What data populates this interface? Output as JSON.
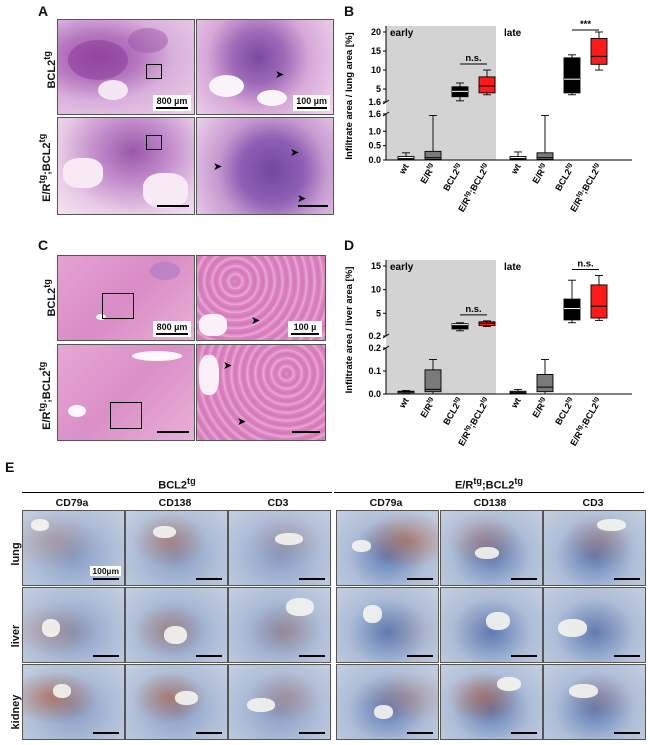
{
  "panels": {
    "A": "A",
    "B": "B",
    "C": "C",
    "D": "D",
    "E": "E"
  },
  "row_labels": {
    "bcl2": "BCL2",
    "bcl2_sup": "tg",
    "er_bcl2_a": "E/R",
    "er_bcl2_sup1": "tg",
    "er_bcl2_b": ";BCL2",
    "er_bcl2_sup2": "tg"
  },
  "scalebars": {
    "a_low": "800 µm",
    "a_high": "100 µm",
    "c_low": "800 µm",
    "c_high": "100 µ",
    "e": "100µm"
  },
  "colors": {
    "he_lung_bg": "#e6c0e0",
    "he_lung_tissue": "#b06fb8",
    "he_liver": "#d88bc4",
    "ihc_bg": "#cfd8e4",
    "ihc_blue": "#4a6db0",
    "ihc_brown": "#b5532a",
    "shade": "#d3d3d3",
    "box_white": "#ffffff",
    "box_dark": "#1a1a1a",
    "box_gray": "#7a7a7a",
    "box_black": "#000000",
    "box_red": "#ff1a1a"
  },
  "section_E": {
    "group1": "BCL2",
    "group1_sup": "tg",
    "group2_a": "E/R",
    "group2_sup1": "tg",
    "group2_b": ";BCL2",
    "group2_sup2": "tg",
    "stains": [
      "CD79a",
      "CD138",
      "CD3"
    ],
    "tissues": [
      "lung",
      "liver",
      "kidney"
    ]
  },
  "chart_data": [
    {
      "id": "B",
      "type": "box",
      "ylabel": "Infiltrate area / lung area [%]",
      "groups": [
        "early",
        "late"
      ],
      "categories": [
        "wt",
        "E/Rtg",
        "BCL2tg",
        "E/Rtg;BCL2tg"
      ],
      "category_labels": [
        {
          "main": "wt",
          "sup": ""
        },
        {
          "main": "E/R",
          "sup": "tg"
        },
        {
          "main": "BCL2",
          "sup": "tg"
        },
        {
          "main": "E/R",
          "sup": "tg",
          "main2": ";BCL2",
          "sup2": "tg"
        }
      ],
      "y_segment_lower": {
        "range": [
          0,
          1.6
        ],
        "ticks": [
          "0.0",
          "0.5",
          "1.0",
          "1.6"
        ]
      },
      "y_segment_upper": {
        "range": [
          1.6,
          20
        ],
        "ticks": [
          "1.6",
          "5",
          "10",
          "15",
          "20"
        ]
      },
      "boxes": [
        {
          "group": "early",
          "cat": "wt",
          "min": 0,
          "q1": 0.02,
          "median": 0.05,
          "q3": 0.12,
          "max": 0.25,
          "color": "#ffffff"
        },
        {
          "group": "early",
          "cat": "E/Rtg",
          "min": 0,
          "q1": 0.02,
          "median": 0.08,
          "q3": 0.3,
          "max": 1.55,
          "color": "#7a7a7a"
        },
        {
          "group": "early",
          "cat": "BCL2tg",
          "min": 1.9,
          "q1": 3.0,
          "median": 4.4,
          "q3": 5.6,
          "max": 6.6,
          "color": "#000000"
        },
        {
          "group": "early",
          "cat": "E/Rtg;BCL2tg",
          "min": 3.5,
          "q1": 4.0,
          "median": 5.8,
          "q3": 8.2,
          "max": 10.0,
          "color": "#ff1a1a"
        },
        {
          "group": "late",
          "cat": "wt",
          "min": 0,
          "q1": 0.02,
          "median": 0.05,
          "q3": 0.12,
          "max": 0.28,
          "color": "#ffffff"
        },
        {
          "group": "late",
          "cat": "E/Rtg",
          "min": 0,
          "q1": 0.02,
          "median": 0.08,
          "q3": 0.25,
          "max": 1.55,
          "color": "#7a7a7a"
        },
        {
          "group": "late",
          "cat": "BCL2tg",
          "min": 3.5,
          "q1": 4.0,
          "median": 7.6,
          "q3": 13.2,
          "max": 14.0,
          "color": "#000000"
        },
        {
          "group": "late",
          "cat": "E/Rtg;BCL2tg",
          "min": 10.0,
          "q1": 11.5,
          "median": 13.6,
          "q3": 18.3,
          "max": 20.0,
          "color": "#ff1a1a"
        }
      ],
      "annotations": [
        {
          "group": "early",
          "from": "BCL2tg",
          "to": "E/Rtg;BCL2tg",
          "text": "n.s."
        },
        {
          "group": "late",
          "from": "BCL2tg",
          "to": "E/Rtg;BCL2tg",
          "text": "***"
        }
      ]
    },
    {
      "id": "D",
      "type": "box",
      "ylabel": "Infiltrate area / liver area [%]",
      "groups": [
        "early",
        "late"
      ],
      "categories": [
        "wt",
        "E/Rtg",
        "BCL2tg",
        "E/Rtg;BCL2tg"
      ],
      "category_labels": [
        {
          "main": "wt",
          "sup": ""
        },
        {
          "main": "E/R",
          "sup": "tg"
        },
        {
          "main": "BCL2",
          "sup": "tg"
        },
        {
          "main": "E/R",
          "sup": "tg",
          "main2": ";BCL2",
          "sup2": "tg"
        }
      ],
      "y_segment_lower": {
        "range": [
          0,
          0.2
        ],
        "ticks": [
          "0.0",
          "0.1",
          "0.2"
        ]
      },
      "y_segment_upper": {
        "range": [
          0.2,
          15
        ],
        "ticks": [
          "0.2",
          "5",
          "10",
          "15"
        ]
      },
      "boxes": [
        {
          "group": "early",
          "cat": "wt",
          "min": 0.005,
          "q1": 0.008,
          "median": 0.01,
          "q3": 0.012,
          "max": 0.015,
          "color": "#ffffff"
        },
        {
          "group": "early",
          "cat": "E/Rtg",
          "min": 0,
          "q1": 0.01,
          "median": 0.02,
          "q3": 0.105,
          "max": 0.15,
          "color": "#7a7a7a"
        },
        {
          "group": "early",
          "cat": "BCL2tg",
          "min": 1.3,
          "q1": 1.7,
          "median": 2.6,
          "q3": 2.8,
          "max": 3.0,
          "color": "#000000"
        },
        {
          "group": "early",
          "cat": "E/Rtg;BCL2tg",
          "min": 2.2,
          "q1": 2.4,
          "median": 2.9,
          "q3": 3.2,
          "max": 3.4,
          "color": "#ff1a1a"
        },
        {
          "group": "late",
          "cat": "wt",
          "min": 0,
          "q1": 0.004,
          "median": 0.008,
          "q3": 0.012,
          "max": 0.02,
          "color": "#ffffff"
        },
        {
          "group": "late",
          "cat": "E/Rtg",
          "min": 0,
          "q1": 0.01,
          "median": 0.03,
          "q3": 0.085,
          "max": 0.15,
          "color": "#7a7a7a"
        },
        {
          "group": "late",
          "cat": "BCL2tg",
          "min": 3.0,
          "q1": 3.6,
          "median": 6.0,
          "q3": 8.0,
          "max": 12.0,
          "color": "#000000"
        },
        {
          "group": "late",
          "cat": "E/Rtg;BCL2tg",
          "min": 3.5,
          "q1": 4.0,
          "median": 6.5,
          "q3": 11.0,
          "max": 13.0,
          "color": "#ff1a1a"
        }
      ],
      "annotations": [
        {
          "group": "early",
          "from": "BCL2tg",
          "to": "E/Rtg;BCL2tg",
          "text": "n.s."
        },
        {
          "group": "late",
          "from": "BCL2tg",
          "to": "E/Rtg;BCL2tg",
          "text": "n.s."
        }
      ]
    }
  ]
}
